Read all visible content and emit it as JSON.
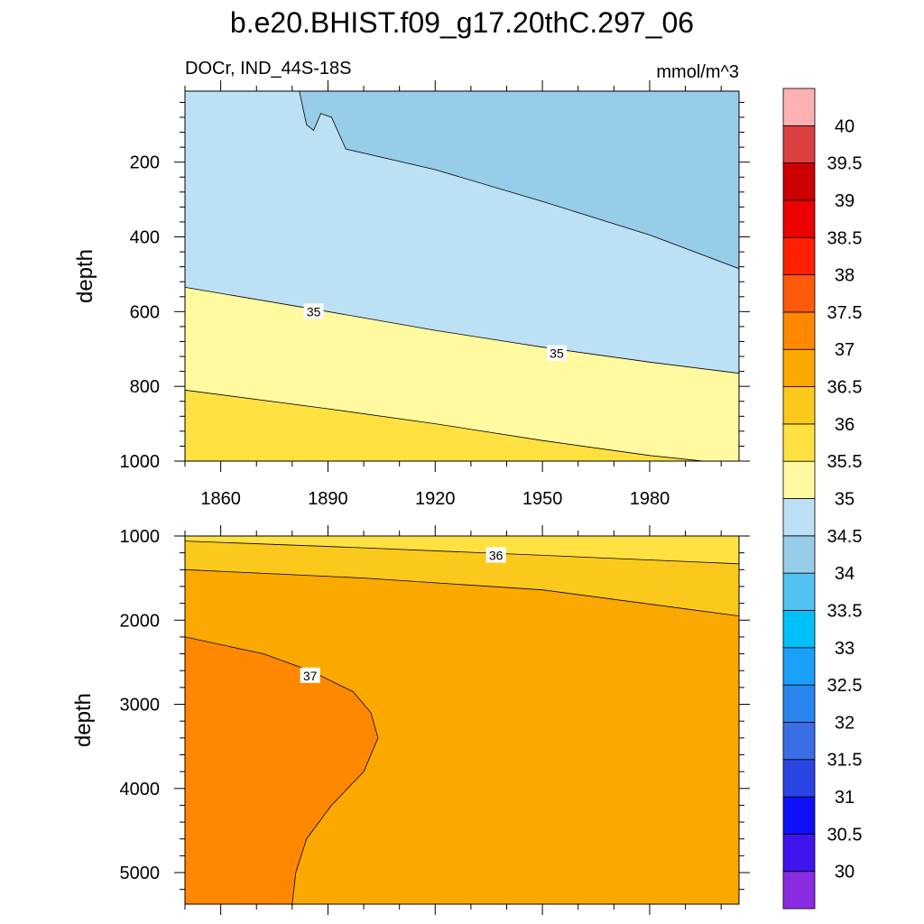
{
  "chart_data": {
    "type": "heatmap",
    "title": "b.e20.BHIST.f09_g17.20thC.297_06",
    "units": "mmol/m^3",
    "colorbar": {
      "levels": [
        30,
        30.5,
        31,
        31.5,
        32,
        32.5,
        33,
        33.5,
        34,
        34.5,
        35,
        35.5,
        36,
        36.5,
        37,
        37.5,
        38,
        38.5,
        39,
        39.5,
        40
      ],
      "labels": [
        "40",
        "39.5",
        "39",
        "38.5",
        "38",
        "37.5",
        "37",
        "36.5",
        "36",
        "35.5",
        "35",
        "34.5",
        "34",
        "33.5",
        "33",
        "32.5",
        "32",
        "31.5",
        "31",
        "30.5",
        "30"
      ],
      "colors_bottom_to_top": [
        "#8a2be2",
        "#3f14ee",
        "#1010f8",
        "#2a45e2",
        "#3a6ee6",
        "#2a86ee",
        "#1aa0f8",
        "#00c0f8",
        "#52c2f2",
        "#98cdea",
        "#bce0f4",
        "#fff9a0",
        "#ffe142",
        "#fbc81c",
        "#fba800",
        "#ff8800",
        "#ff5a0a",
        "#ff2000",
        "#ec0000",
        "#cc0000",
        "#dc4040",
        "#ffb0b0"
      ]
    },
    "panels": [
      {
        "subtitle_left": "DOCr, IND_44S-18S",
        "subtitle_right": "mmol/m^3",
        "ylabel": "depth",
        "x_range": [
          1850,
          2005
        ],
        "y_range": [
          10,
          1000
        ],
        "y_reversed": true,
        "x_ticks": [
          "1860",
          "1890",
          "1920",
          "1950",
          "1980"
        ],
        "y_ticks": [
          "200",
          "400",
          "600",
          "800",
          "1000"
        ],
        "bands": [
          {
            "level": "34-34.5",
            "color": "#98cdea"
          },
          {
            "level": "34.5-35",
            "color": "#bce0f4"
          },
          {
            "level": "35-35.5",
            "color": "#fff9a0"
          },
          {
            "level": "35.5-36",
            "color": "#ffe142"
          }
        ],
        "contours": [
          {
            "value": 34.5,
            "points": [
              [
                1882,
                10
              ],
              [
                1884,
                100
              ],
              [
                1886,
                115
              ],
              [
                1888,
                70
              ],
              [
                1891,
                80
              ],
              [
                1895,
                165
              ],
              [
                1920,
                220
              ],
              [
                1950,
                305
              ],
              [
                1980,
                395
              ],
              [
                2005,
                485
              ]
            ]
          },
          {
            "value": 35,
            "points": [
              [
                1850,
                535
              ],
              [
                1890,
                600
              ],
              [
                1920,
                650
              ],
              [
                1950,
                695
              ],
              [
                1980,
                735
              ],
              [
                2005,
                765
              ]
            ]
          },
          {
            "value": 35.5,
            "points": [
              [
                1850,
                810
              ],
              [
                1890,
                860
              ],
              [
                1920,
                900
              ],
              [
                1950,
                945
              ],
              [
                1980,
                985
              ],
              [
                1995,
                1000
              ]
            ]
          }
        ],
        "contour_labels": [
          {
            "text": "35",
            "x": 1886,
            "y": 600
          },
          {
            "text": "35",
            "x": 1954,
            "y": 712
          }
        ]
      },
      {
        "ylabel": "depth",
        "x_range": [
          1850,
          2005
        ],
        "y_range": [
          1000,
          5375
        ],
        "y_reversed": true,
        "x_ticks": [],
        "y_ticks": [
          "1000",
          "2000",
          "3000",
          "4000",
          "5000"
        ],
        "bands": [
          {
            "level": "35.5-36",
            "color": "#ffe142"
          },
          {
            "level": "36-36.5",
            "color": "#fbc81c"
          },
          {
            "level": "36.5-37",
            "color": "#fba800"
          },
          {
            "level": "37-37.5",
            "color": "#ff8800"
          }
        ],
        "contours": [
          {
            "value": 36,
            "points": [
              [
                1850,
                1060
              ],
              [
                1900,
                1140
              ],
              [
                1950,
                1230
              ],
              [
                2005,
                1330
              ]
            ]
          },
          {
            "value": 36.5,
            "points": [
              [
                1850,
                1400
              ],
              [
                1900,
                1500
              ],
              [
                1950,
                1640
              ],
              [
                2005,
                1950
              ]
            ]
          },
          {
            "value": 37,
            "points": [
              [
                1850,
                2200
              ],
              [
                1872,
                2400
              ],
              [
                1885,
                2600
              ],
              [
                1897,
                2850
              ],
              [
                1902,
                3100
              ],
              [
                1904,
                3400
              ],
              [
                1900,
                3800
              ],
              [
                1891,
                4200
              ],
              [
                1884,
                4600
              ],
              [
                1881,
                5000
              ],
              [
                1880,
                5375
              ]
            ]
          }
        ],
        "contour_labels": [
          {
            "text": "36",
            "x": 1937,
            "y": 1230
          },
          {
            "text": "37",
            "x": 1885,
            "y": 2660
          }
        ]
      }
    ]
  }
}
